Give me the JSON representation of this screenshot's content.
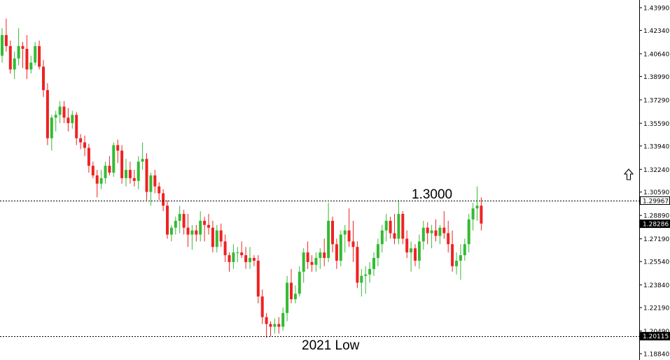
{
  "chart_data": {
    "type": "candlestick",
    "y_axis": {
      "ticks": [
        "1.43990",
        "1.42340",
        "1.40640",
        "1.38990",
        "1.37290",
        "1.35590",
        "1.33940",
        "1.32240",
        "1.30590",
        "1.28890",
        "1.27190",
        "1.25540",
        "1.23840",
        "1.22190",
        "1.20490",
        "1.18840"
      ],
      "ylim": [
        1.1884,
        1.4399
      ],
      "position": "right"
    },
    "price_badges": [
      {
        "label": "1.29967",
        "value": 1.29967,
        "style": "outline"
      },
      {
        "label": "1.28286",
        "value": 1.28286,
        "style": "filled"
      },
      {
        "label": "1.20115",
        "value": 1.20115,
        "style": "filled"
      }
    ],
    "levels": [
      {
        "label": "1.3000",
        "value": 1.29967,
        "style": "dotted"
      },
      {
        "label": "2021 Low",
        "value": 1.20115,
        "style": "dotted"
      }
    ],
    "up_color": "#33bb33",
    "down_color": "#ee2222",
    "up_arrow_icon": "up-arrow-outline-icon",
    "candles": [
      [
        1.405,
        1.425,
        1.4,
        1.42
      ],
      [
        1.42,
        1.432,
        1.408,
        1.412
      ],
      [
        1.412,
        1.416,
        1.392,
        1.395
      ],
      [
        1.395,
        1.408,
        1.388,
        1.403
      ],
      [
        1.403,
        1.425,
        1.398,
        1.412
      ],
      [
        1.412,
        1.415,
        1.396,
        1.41
      ],
      [
        1.41,
        1.42,
        1.388,
        1.395
      ],
      [
        1.395,
        1.405,
        1.392,
        1.4
      ],
      [
        1.4,
        1.415,
        1.398,
        1.412
      ],
      [
        1.412,
        1.416,
        1.395,
        1.397
      ],
      [
        1.397,
        1.402,
        1.375,
        1.38
      ],
      [
        1.38,
        1.385,
        1.34,
        1.345
      ],
      [
        1.345,
        1.362,
        1.336,
        1.36
      ],
      [
        1.36,
        1.365,
        1.35,
        1.362
      ],
      [
        1.362,
        1.372,
        1.356,
        1.368
      ],
      [
        1.368,
        1.372,
        1.356,
        1.36
      ],
      [
        1.36,
        1.367,
        1.35,
        1.356
      ],
      [
        1.356,
        1.365,
        1.352,
        1.362
      ],
      [
        1.362,
        1.364,
        1.34,
        1.345
      ],
      [
        1.345,
        1.348,
        1.337,
        1.342
      ],
      [
        1.342,
        1.347,
        1.332,
        1.338
      ],
      [
        1.338,
        1.341,
        1.32,
        1.325
      ],
      [
        1.325,
        1.328,
        1.316,
        1.318
      ],
      [
        1.318,
        1.322,
        1.302,
        1.312
      ],
      [
        1.312,
        1.322,
        1.308,
        1.316
      ],
      [
        1.316,
        1.328,
        1.312,
        1.325
      ],
      [
        1.325,
        1.332,
        1.318,
        1.32
      ],
      [
        1.32,
        1.342,
        1.317,
        1.34
      ],
      [
        1.34,
        1.344,
        1.327,
        1.336
      ],
      [
        1.336,
        1.34,
        1.312,
        1.316
      ],
      [
        1.316,
        1.33,
        1.31,
        1.322
      ],
      [
        1.322,
        1.328,
        1.312,
        1.316
      ],
      [
        1.316,
        1.322,
        1.31,
        1.314
      ],
      [
        1.314,
        1.332,
        1.308,
        1.328
      ],
      [
        1.328,
        1.342,
        1.322,
        1.33
      ],
      [
        1.33,
        1.334,
        1.3,
        1.306
      ],
      [
        1.306,
        1.32,
        1.296,
        1.318
      ],
      [
        1.318,
        1.322,
        1.305,
        1.31
      ],
      [
        1.31,
        1.313,
        1.3,
        1.305
      ],
      [
        1.305,
        1.308,
        1.292,
        1.296
      ],
      [
        1.296,
        1.3,
        1.272,
        1.275
      ],
      [
        1.275,
        1.282,
        1.27,
        1.28
      ],
      [
        1.28,
        1.288,
        1.275,
        1.285
      ],
      [
        1.285,
        1.296,
        1.276,
        1.29
      ],
      [
        1.29,
        1.293,
        1.275,
        1.28
      ],
      [
        1.28,
        1.29,
        1.266,
        1.275
      ],
      [
        1.275,
        1.282,
        1.264,
        1.278
      ],
      [
        1.278,
        1.282,
        1.27,
        1.275
      ],
      [
        1.275,
        1.292,
        1.27,
        1.285
      ],
      [
        1.285,
        1.288,
        1.27,
        1.282
      ],
      [
        1.282,
        1.29,
        1.275,
        1.28
      ],
      [
        1.28,
        1.285,
        1.262,
        1.266
      ],
      [
        1.266,
        1.282,
        1.262,
        1.278
      ],
      [
        1.278,
        1.283,
        1.266,
        1.27
      ],
      [
        1.27,
        1.275,
        1.255,
        1.26
      ],
      [
        1.26,
        1.262,
        1.248,
        1.255
      ],
      [
        1.255,
        1.268,
        1.25,
        1.262
      ],
      [
        1.262,
        1.266,
        1.255,
        1.262
      ],
      [
        1.262,
        1.27,
        1.258,
        1.26
      ],
      [
        1.26,
        1.266,
        1.25,
        1.255
      ],
      [
        1.255,
        1.266,
        1.25,
        1.258
      ],
      [
        1.258,
        1.26,
        1.252,
        1.256
      ],
      [
        1.256,
        1.26,
        1.225,
        1.23
      ],
      [
        1.23,
        1.235,
        1.21,
        1.215
      ],
      [
        1.215,
        1.218,
        1.2,
        1.21
      ],
      [
        1.21,
        1.212,
        1.201,
        1.208
      ],
      [
        1.208,
        1.214,
        1.203,
        1.21
      ],
      [
        1.21,
        1.215,
        1.203,
        1.208
      ],
      [
        1.208,
        1.222,
        1.205,
        1.218
      ],
      [
        1.218,
        1.245,
        1.212,
        1.24
      ],
      [
        1.24,
        1.25,
        1.225,
        1.228
      ],
      [
        1.228,
        1.238,
        1.225,
        1.232
      ],
      [
        1.232,
        1.252,
        1.23,
        1.248
      ],
      [
        1.248,
        1.265,
        1.24,
        1.262
      ],
      [
        1.262,
        1.27,
        1.25,
        1.255
      ],
      [
        1.255,
        1.26,
        1.248,
        1.253
      ],
      [
        1.253,
        1.262,
        1.248,
        1.258
      ],
      [
        1.258,
        1.265,
        1.25,
        1.262
      ],
      [
        1.262,
        1.272,
        1.252,
        1.258
      ],
      [
        1.258,
        1.298,
        1.255,
        1.285
      ],
      [
        1.285,
        1.288,
        1.262,
        1.268
      ],
      [
        1.268,
        1.272,
        1.25,
        1.256
      ],
      [
        1.256,
        1.278,
        1.252,
        1.275
      ],
      [
        1.275,
        1.282,
        1.262,
        1.278
      ],
      [
        1.278,
        1.294,
        1.266,
        1.27
      ],
      [
        1.27,
        1.285,
        1.255,
        1.266
      ],
      [
        1.266,
        1.27,
        1.236,
        1.24
      ],
      [
        1.24,
        1.25,
        1.23,
        1.245
      ],
      [
        1.245,
        1.252,
        1.232,
        1.246
      ],
      [
        1.246,
        1.255,
        1.24,
        1.25
      ],
      [
        1.25,
        1.262,
        1.245,
        1.258
      ],
      [
        1.258,
        1.272,
        1.252,
        1.268
      ],
      [
        1.268,
        1.282,
        1.262,
        1.278
      ],
      [
        1.278,
        1.29,
        1.27,
        1.285
      ],
      [
        1.285,
        1.288,
        1.272,
        1.276
      ],
      [
        1.276,
        1.29,
        1.268,
        1.272
      ],
      [
        1.272,
        1.3,
        1.268,
        1.29
      ],
      [
        1.29,
        1.292,
        1.268,
        1.272
      ],
      [
        1.272,
        1.278,
        1.258,
        1.262
      ],
      [
        1.262,
        1.27,
        1.248,
        1.265
      ],
      [
        1.265,
        1.268,
        1.252,
        1.256
      ],
      [
        1.256,
        1.275,
        1.25,
        1.27
      ],
      [
        1.27,
        1.285,
        1.264,
        1.28
      ],
      [
        1.28,
        1.284,
        1.268,
        1.276
      ],
      [
        1.276,
        1.282,
        1.265,
        1.278
      ],
      [
        1.278,
        1.286,
        1.27,
        1.274
      ],
      [
        1.274,
        1.282,
        1.268,
        1.28
      ],
      [
        1.28,
        1.292,
        1.272,
        1.276
      ],
      [
        1.276,
        1.285,
        1.262,
        1.268
      ],
      [
        1.268,
        1.278,
        1.248,
        1.252
      ],
      [
        1.252,
        1.262,
        1.246,
        1.256
      ],
      [
        1.256,
        1.268,
        1.242,
        1.26
      ],
      [
        1.26,
        1.272,
        1.256,
        1.268
      ],
      [
        1.268,
        1.29,
        1.262,
        1.286
      ],
      [
        1.286,
        1.298,
        1.278,
        1.294
      ],
      [
        1.294,
        1.31,
        1.285,
        1.296
      ],
      [
        1.296,
        1.302,
        1.278,
        1.283
      ]
    ]
  },
  "labels": {
    "level_1300": "1.3000",
    "low_2021": "2021 Low"
  }
}
